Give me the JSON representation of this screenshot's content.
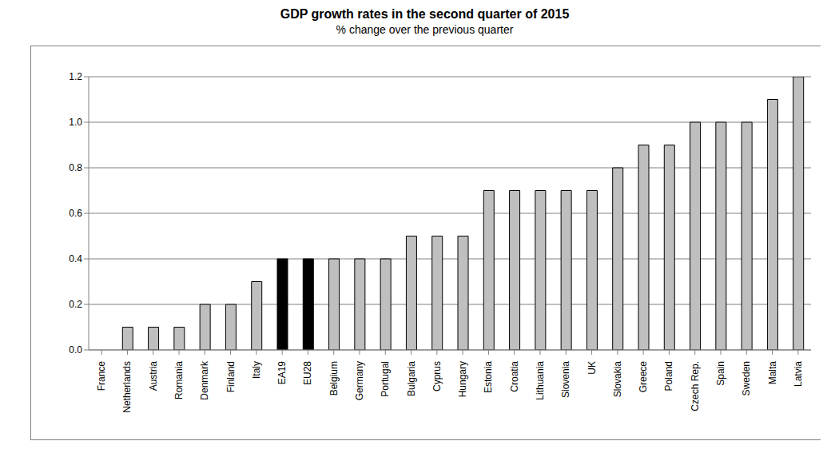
{
  "chart_data": {
    "type": "bar",
    "title": "GDP growth rates in the second quarter of 2015",
    "subtitle": "% change over the previous quarter",
    "categories": [
      "France",
      "Netherlands",
      "Austria",
      "Romania",
      "Denmark",
      "Finland",
      "Italy",
      "EA19",
      "EU28",
      "Belgium",
      "Germany",
      "Portugal",
      "Bulgaria",
      "Cyprus",
      "Hungary",
      "Estonia",
      "Croatia",
      "Lithuania",
      "Slovenia",
      "UK",
      "Slovakia",
      "Greece",
      "Poland",
      "Czech Rep.",
      "Spain",
      "Sweden",
      "Malta",
      "Latvia"
    ],
    "values": [
      0.0,
      0.1,
      0.1,
      0.1,
      0.2,
      0.2,
      0.3,
      0.4,
      0.4,
      0.4,
      0.4,
      0.4,
      0.5,
      0.5,
      0.5,
      0.7,
      0.7,
      0.7,
      0.7,
      0.7,
      0.8,
      0.9,
      0.9,
      1.0,
      1.0,
      1.0,
      1.1,
      1.2
    ],
    "colors": [
      "#bfbfbf",
      "#bfbfbf",
      "#bfbfbf",
      "#bfbfbf",
      "#bfbfbf",
      "#bfbfbf",
      "#bfbfbf",
      "#000000",
      "#000000",
      "#bfbfbf",
      "#bfbfbf",
      "#bfbfbf",
      "#bfbfbf",
      "#bfbfbf",
      "#bfbfbf",
      "#bfbfbf",
      "#bfbfbf",
      "#bfbfbf",
      "#bfbfbf",
      "#bfbfbf",
      "#bfbfbf",
      "#bfbfbf",
      "#bfbfbf",
      "#bfbfbf",
      "#bfbfbf",
      "#bfbfbf",
      "#bfbfbf",
      "#bfbfbf"
    ],
    "ylim": [
      0,
      1.2
    ],
    "yticks": [
      {
        "value": 0,
        "label": "0.0"
      },
      0.2,
      0.4,
      0.6,
      0.8,
      {
        "value": 1,
        "label": "1.0"
      },
      1.2
    ],
    "grid": true
  }
}
